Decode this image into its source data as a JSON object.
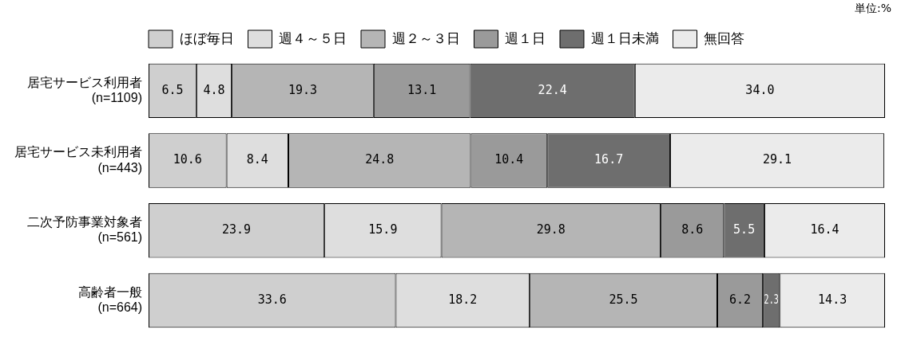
{
  "chart_data": {
    "type": "bar",
    "orientation": "horizontal",
    "stacked": true,
    "categories": [
      "居宅サービス利用者\n(n=1109)",
      "居宅サービス未利用者\n(n=443)",
      "二次予防事業対象者\n(n=561)",
      "高齢者一般\n(n=664)"
    ],
    "series": [
      {
        "name": "ほぼ毎日",
        "color": "#cfcfcf",
        "values": [
          6.5,
          10.6,
          23.9,
          33.6
        ],
        "value_labels": [
          "6.5",
          "10.6",
          "23.9",
          "33.6"
        ]
      },
      {
        "name": "週４～５日",
        "color": "#dedede",
        "values": [
          4.8,
          8.4,
          15.9,
          18.2
        ],
        "value_labels": [
          "4.8",
          "8.4",
          "15.9",
          "18.2"
        ]
      },
      {
        "name": "週２～３日",
        "color": "#b5b5b5",
        "values": [
          19.3,
          24.8,
          29.8,
          25.5
        ],
        "value_labels": [
          "19.3",
          "24.8",
          "29.8",
          "25.5"
        ]
      },
      {
        "name": "週１日",
        "color": "#9a9a9a",
        "values": [
          13.1,
          10.4,
          8.6,
          6.2
        ],
        "value_labels": [
          "13.1",
          "10.4",
          "8.6",
          "6.2"
        ]
      },
      {
        "name": "週１日未満",
        "color": "#6e6e6e",
        "values": [
          22.4,
          16.7,
          5.5,
          2.3
        ],
        "value_labels": [
          "22.4",
          "16.7",
          "5.5",
          "2.3"
        ]
      },
      {
        "name": "無回答",
        "color": "#ebebeb",
        "values": [
          34.0,
          29.1,
          16.4,
          14.3
        ],
        "value_labels": [
          "34.0",
          "29.1",
          "16.4",
          "14.3"
        ]
      }
    ],
    "xlim": [
      0,
      100.1
    ],
    "tick_labels": "y",
    "grid": false,
    "legend": "top",
    "annotations": [
      "単位:%"
    ]
  }
}
